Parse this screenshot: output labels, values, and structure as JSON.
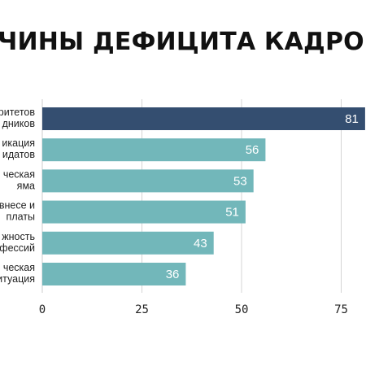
{
  "chart_data": {
    "type": "bar",
    "orientation": "horizontal",
    "title": "ЧИНЫ ДЕФИЦИТА КАДРОВ",
    "categories": [
      [
        "ритетов",
        "дников"
      ],
      [
        "икация",
        "идатов"
      ],
      [
        "ческая",
        "яма"
      ],
      [
        "внесе и",
        "платы"
      ],
      [
        "жность",
        "фессий"
      ],
      [
        "ческая",
        "итуация"
      ]
    ],
    "values": [
      81,
      56,
      53,
      51,
      43,
      36
    ],
    "value_labels": [
      "81",
      "56",
      "53",
      "51",
      "43",
      "36"
    ],
    "xlim": [
      0,
      85
    ],
    "xticks": [
      0,
      25,
      50,
      75
    ],
    "xtick_labels": [
      "0",
      "25",
      "50",
      "75"
    ],
    "highlight_index": 0,
    "highlight_color": "#344e70",
    "bar_color": "#72b7ba",
    "grid": true,
    "gridline_color": "#d4d4d4"
  }
}
